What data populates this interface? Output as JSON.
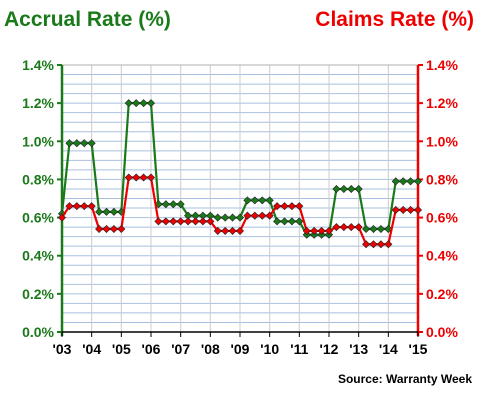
{
  "chart_data": {
    "type": "line",
    "left_axis_title": "Accrual Rate (%)",
    "right_axis_title": "Claims Rate (%)",
    "source": "Source: Warranty Week",
    "x_tick_labels": [
      "'03",
      "'04",
      "'05",
      "'06",
      "'07",
      "'08",
      "'09",
      "'10",
      "'11",
      "'12",
      "'13",
      "'14",
      "'15"
    ],
    "x_range": [
      2003,
      2015
    ],
    "y_range": [
      0,
      1.4
    ],
    "y_tick_labels": [
      "0.0%",
      "0.2%",
      "0.4%",
      "0.6%",
      "0.8%",
      "1.0%",
      "1.2%",
      "1.4%"
    ],
    "grid": true,
    "colors": {
      "accrual": "#1a7a1a",
      "claims": "#ee0000",
      "left_axis": "#1a7a1a",
      "right_axis": "#ee0000",
      "grid_h": "#a9bfe0",
      "grid_v": "#cccccc"
    },
    "series": [
      {
        "name": "Accrual Rate (%)",
        "axis": "left",
        "x": [
          2003.0,
          2003.25,
          2003.5,
          2003.75,
          2004.0,
          2004.25,
          2004.5,
          2004.75,
          2005.0,
          2005.25,
          2005.5,
          2005.75,
          2006.0,
          2006.25,
          2006.5,
          2006.75,
          2007.0,
          2007.25,
          2007.5,
          2007.75,
          2008.0,
          2008.25,
          2008.5,
          2008.75,
          2009.0,
          2009.25,
          2009.5,
          2009.75,
          2010.0,
          2010.25,
          2010.5,
          2010.75,
          2011.0,
          2011.25,
          2011.5,
          2011.75,
          2012.0,
          2012.25,
          2012.5,
          2012.75,
          2013.0,
          2013.25,
          2013.5,
          2013.75,
          2014.0,
          2014.25,
          2014.5,
          2014.75,
          2015.0
        ],
        "values": [
          0.62,
          0.99,
          0.99,
          0.99,
          0.99,
          0.63,
          0.63,
          0.63,
          0.63,
          1.2,
          1.2,
          1.2,
          1.2,
          0.67,
          0.67,
          0.67,
          0.67,
          0.61,
          0.61,
          0.61,
          0.61,
          0.6,
          0.6,
          0.6,
          0.6,
          0.69,
          0.69,
          0.69,
          0.69,
          0.58,
          0.58,
          0.58,
          0.58,
          0.51,
          0.51,
          0.51,
          0.51,
          0.75,
          0.75,
          0.75,
          0.75,
          0.54,
          0.54,
          0.54,
          0.54,
          0.79,
          0.79,
          0.79,
          0.79
        ]
      },
      {
        "name": "Claims Rate (%)",
        "axis": "right",
        "x": [
          2003.0,
          2003.25,
          2003.5,
          2003.75,
          2004.0,
          2004.25,
          2004.5,
          2004.75,
          2005.0,
          2005.25,
          2005.5,
          2005.75,
          2006.0,
          2006.25,
          2006.5,
          2006.75,
          2007.0,
          2007.25,
          2007.5,
          2007.75,
          2008.0,
          2008.25,
          2008.5,
          2008.75,
          2009.0,
          2009.25,
          2009.5,
          2009.75,
          2010.0,
          2010.25,
          2010.5,
          2010.75,
          2011.0,
          2011.25,
          2011.5,
          2011.75,
          2012.0,
          2012.25,
          2012.5,
          2012.75,
          2013.0,
          2013.25,
          2013.5,
          2013.75,
          2014.0,
          2014.25,
          2014.5,
          2014.75,
          2015.0
        ],
        "values": [
          0.6,
          0.66,
          0.66,
          0.66,
          0.66,
          0.54,
          0.54,
          0.54,
          0.54,
          0.81,
          0.81,
          0.81,
          0.81,
          0.58,
          0.58,
          0.58,
          0.58,
          0.58,
          0.58,
          0.58,
          0.58,
          0.53,
          0.53,
          0.53,
          0.53,
          0.61,
          0.61,
          0.61,
          0.61,
          0.66,
          0.66,
          0.66,
          0.66,
          0.53,
          0.53,
          0.53,
          0.53,
          0.55,
          0.55,
          0.55,
          0.55,
          0.46,
          0.46,
          0.46,
          0.46,
          0.64,
          0.64,
          0.64,
          0.64
        ]
      }
    ]
  }
}
